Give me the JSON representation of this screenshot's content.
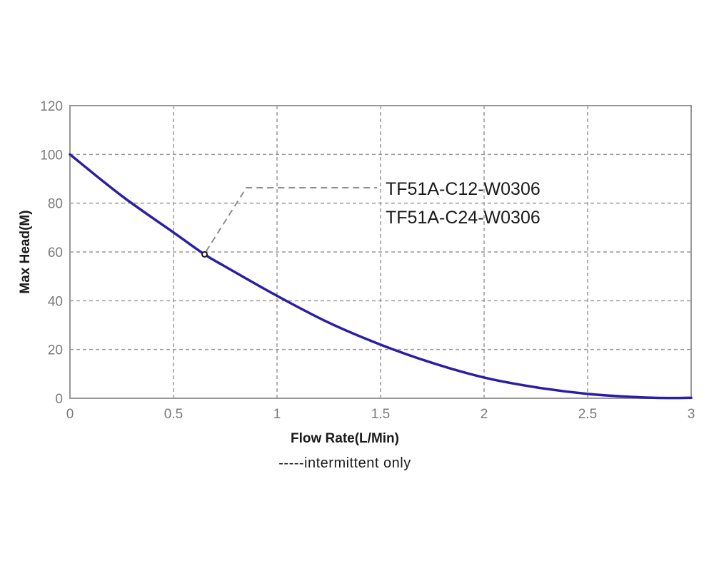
{
  "chart_data": {
    "type": "line",
    "xlabel": "Flow Rate(L/Min)",
    "ylabel": "Max Head(M)",
    "xlim": [
      0,
      3
    ],
    "ylim": [
      0,
      120
    ],
    "x_ticks": [
      "0",
      "0.5",
      "1",
      "1.5",
      "2",
      "2.5",
      "3"
    ],
    "y_ticks": [
      "0",
      "20",
      "40",
      "60",
      "80",
      "100",
      "120"
    ],
    "grid": true,
    "series": [
      {
        "name": "TF51A-C12-W0306 / TF51A-C24-W0306",
        "color": "#2a1ea8",
        "x": [
          0,
          0.25,
          0.5,
          0.65,
          0.75,
          1.0,
          1.25,
          1.5,
          1.75,
          2.0,
          2.25,
          2.5,
          2.75,
          2.9,
          3.0
        ],
        "y": [
          100,
          83,
          68,
          59,
          54,
          42,
          31,
          22,
          14.5,
          8.5,
          4.5,
          1.8,
          0.4,
          0.1,
          0.2
        ]
      }
    ],
    "annotation": {
      "point": [
        0.65,
        59
      ],
      "labels": [
        "TF51A-C12-W0306",
        "TF51A-C24-W0306"
      ]
    },
    "note": "-----intermittent only"
  }
}
